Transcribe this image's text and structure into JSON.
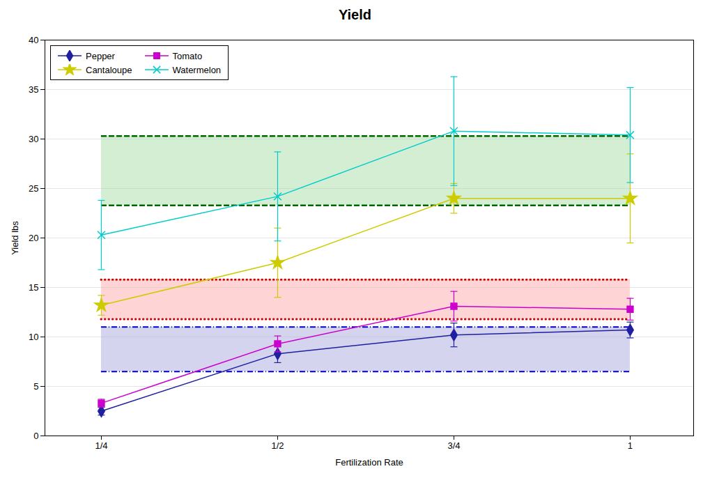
{
  "chart_data": {
    "type": "line",
    "title": "Yield",
    "xlabel": "Fertilization Rate",
    "ylabel": "Yield lbs",
    "x": [
      0.25,
      0.5,
      0.75,
      1.0
    ],
    "xlim": [
      0.17,
      1.09
    ],
    "xticks": [
      {
        "value": 0.25,
        "label": "1/4"
      },
      {
        "value": 0.5,
        "label": "1/2"
      },
      {
        "value": 0.75,
        "label": "3/4"
      },
      {
        "value": 1.0,
        "label": "1"
      }
    ],
    "ylim": [
      0,
      40
    ],
    "yticks": [
      0,
      5,
      10,
      15,
      20,
      25,
      30,
      35,
      40
    ],
    "grid": "y",
    "legend": "upper left",
    "series": [
      {
        "name": "Pepper",
        "color": "#1F1FA0",
        "marker": "diamond",
        "values": [
          2.5,
          8.3,
          10.2,
          10.7
        ],
        "yerr": [
          0.4,
          0.9,
          1.2,
          0.8
        ]
      },
      {
        "name": "Tomato",
        "color": "#CC00CC",
        "marker": "square",
        "values": [
          3.3,
          9.3,
          13.1,
          12.8
        ],
        "yerr": [
          0.4,
          0.8,
          1.5,
          1.1
        ]
      },
      {
        "name": "Cantaloupe",
        "color": "#CCCC00",
        "marker": "star",
        "values": [
          13.2,
          17.5,
          24.0,
          24.0
        ],
        "yerr": [
          1.0,
          3.5,
          1.5,
          4.5
        ]
      },
      {
        "name": "Watermelon",
        "color": "#00CCCC",
        "marker": "times",
        "values": [
          20.3,
          24.2,
          30.8,
          30.4
        ],
        "yerr": [
          3.5,
          4.5,
          5.5,
          4.8
        ]
      }
    ],
    "band_x": [
      0.25,
      1.0
    ],
    "bands": [
      {
        "lower": 6.5,
        "upper": 11.0,
        "color": "#AAAADD"
      },
      {
        "lower": 11.8,
        "upper": 15.8,
        "color": "#FFAAAA"
      },
      {
        "lower": 23.3,
        "upper": 30.3,
        "color": "#AADDAA"
      }
    ],
    "reference_lines": [
      {
        "y": 11.0,
        "color": "#0000CC",
        "line_style": "dashdot"
      },
      {
        "y": 6.5,
        "color": "#0000CC",
        "line_style": "dashdot"
      },
      {
        "y": 15.8,
        "color": "#CC0000",
        "line_style": "dotted"
      },
      {
        "y": 11.8,
        "color": "#CC0000",
        "line_style": "dotted"
      },
      {
        "y": 30.3,
        "color": "#006600",
        "line_style": "dashed"
      },
      {
        "y": 23.3,
        "color": "#006600",
        "line_style": "dashed"
      }
    ]
  }
}
